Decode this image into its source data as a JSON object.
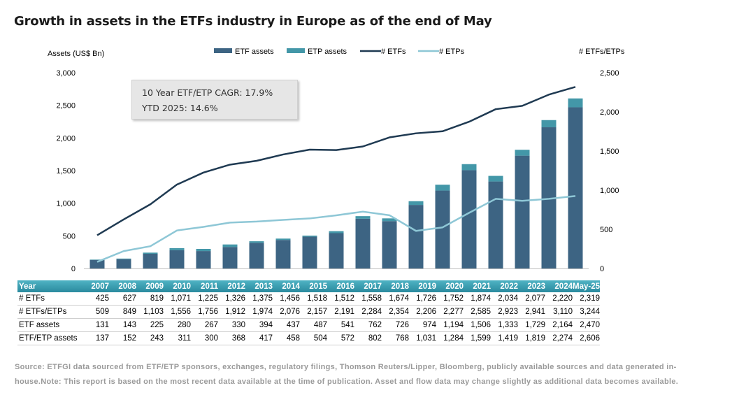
{
  "title": "Growth in assets in the ETFs industry in Europe as of the end of May",
  "note": {
    "line1": "10 Year ETF/ETP CAGR: 17.9%",
    "line2": "YTD 2025: 14.6%"
  },
  "source": "Source: ETFGI data sourced from ETF/ETP sponsors, exchanges, regulatory filings, Thomson Reuters/Lipper, Bloomberg, publicly available sources and data generated in-house.Note: This report is based on the most recent data available at the time of publication. Asset and flow data may change slightly as additional data becomes available.",
  "colors": {
    "etf_bar": "#3d6483",
    "etp_bar": "#4397a8",
    "etfs_line": "#1f3a52",
    "etps_line": "#8ec7d6"
  },
  "chart_data": {
    "type": "bar",
    "categories": [
      "2007",
      "2008",
      "2009",
      "2010",
      "2011",
      "2012",
      "2013",
      "2014",
      "2015",
      "2016",
      "2017",
      "2018",
      "2019",
      "2020",
      "2021",
      "2022",
      "2023",
      "2024",
      "May-25"
    ],
    "ylabel_left": "Assets (US$ Bn)",
    "ylabel_right": "# ETFs/ETPs",
    "ylim_left": [
      0,
      3000
    ],
    "ylim_right": [
      0,
      2500
    ],
    "yticks_left": [
      "0",
      "500",
      "1,000",
      "1,500",
      "2,000",
      "2,500",
      "3,000"
    ],
    "yticks_right": [
      "0",
      "500",
      "1,000",
      "1,500",
      "2,000",
      "2,500"
    ],
    "legend_position": "top",
    "series": [
      {
        "name": "ETF assets",
        "kind": "bar",
        "axis": "left",
        "values": [
          131,
          143,
          225,
          280,
          267,
          330,
          394,
          437,
          487,
          541,
          762,
          726,
          974,
          1194,
          1506,
          1333,
          1729,
          2164,
          2470
        ]
      },
      {
        "name": "ETP assets",
        "kind": "bar-stacked",
        "axis": "left",
        "values": [
          6,
          9,
          18,
          31,
          33,
          38,
          23,
          21,
          17,
          31,
          40,
          42,
          57,
          90,
          93,
          86,
          90,
          110,
          136
        ]
      },
      {
        "name": "# ETFs",
        "kind": "line",
        "axis": "right",
        "values": [
          425,
          627,
          819,
          1071,
          1225,
          1326,
          1375,
          1456,
          1518,
          1512,
          1558,
          1674,
          1726,
          1752,
          1874,
          2034,
          2077,
          2220,
          2319
        ]
      },
      {
        "name": "# ETPs",
        "kind": "line",
        "axis": "right",
        "values": [
          84,
          222,
          284,
          485,
          531,
          586,
          599,
          620,
          639,
          679,
          726,
          680,
          480,
          525,
          711,
          889,
          864,
          890,
          925
        ]
      }
    ]
  },
  "table": {
    "header_label": "Year",
    "rows": [
      {
        "label": "# ETFs",
        "values": [
          "425",
          "627",
          "819",
          "1,071",
          "1,225",
          "1,326",
          "1,375",
          "1,456",
          "1,518",
          "1,512",
          "1,558",
          "1,674",
          "1,726",
          "1,752",
          "1,874",
          "2,034",
          "2,077",
          "2,220",
          "2,319"
        ]
      },
      {
        "label": "# ETFs/ETPs",
        "values": [
          "509",
          "849",
          "1,103",
          "1,556",
          "1,756",
          "1,912",
          "1,974",
          "2,076",
          "2,157",
          "2,191",
          "2,284",
          "2,354",
          "2,206",
          "2,277",
          "2,585",
          "2,923",
          "2,941",
          "3,110",
          "3,244"
        ]
      },
      {
        "label": "ETF assets",
        "values": [
          "131",
          "143",
          "225",
          "280",
          "267",
          "330",
          "394",
          "437",
          "487",
          "541",
          "762",
          "726",
          "974",
          "1,194",
          "1,506",
          "1,333",
          "1,729",
          "2,164",
          "2,470"
        ]
      },
      {
        "label": "ETF/ETP assets",
        "values": [
          "137",
          "152",
          "243",
          "311",
          "300",
          "368",
          "417",
          "458",
          "504",
          "572",
          "802",
          "768",
          "1,031",
          "1,284",
          "1,599",
          "1,419",
          "1,819",
          "2,274",
          "2,606"
        ]
      }
    ]
  }
}
